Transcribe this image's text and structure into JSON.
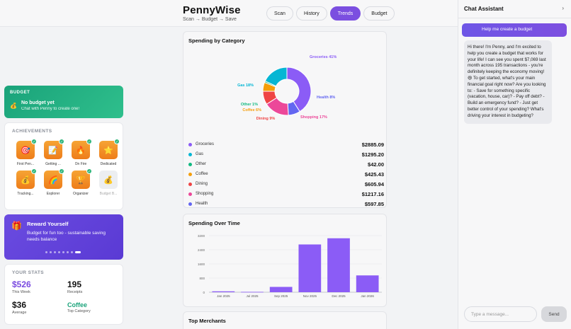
{
  "app": {
    "name": "PennyWise",
    "tagline": "Scan → Budget → Save"
  },
  "nav": {
    "tabs": [
      {
        "label": "Scan",
        "active": false
      },
      {
        "label": "History",
        "active": false
      },
      {
        "label": "Trends",
        "active": true
      },
      {
        "label": "Budget",
        "active": false
      }
    ]
  },
  "budget": {
    "label": "BUDGET",
    "title": "No budget yet",
    "subtitle": "Chat with Penny to create one!",
    "icon": "money-bag-icon"
  },
  "achievements": {
    "label": "ACHIEVEMENTS",
    "items": [
      {
        "name": "First Pen...",
        "icon": "target-icon",
        "unlocked": true
      },
      {
        "name": "Getting ...",
        "icon": "notepad-icon",
        "unlocked": true
      },
      {
        "name": "On Fire",
        "icon": "fire-icon",
        "unlocked": true
      },
      {
        "name": "Dedicated",
        "icon": "star-icon",
        "unlocked": true
      },
      {
        "name": "Tracking...",
        "icon": "money-icon",
        "unlocked": true
      },
      {
        "name": "Explorer",
        "icon": "rainbow-icon",
        "unlocked": true
      },
      {
        "name": "Organizer",
        "icon": "trophy-icon",
        "unlocked": true
      },
      {
        "name": "Budget B...",
        "icon": "moneybag-icon",
        "unlocked": false
      }
    ]
  },
  "reward": {
    "title": "Reward Yourself",
    "description": "Budget for fun too - sustainable saving needs balance",
    "dots": 8,
    "active_dot": 7
  },
  "stats": {
    "label": "YOUR STATS",
    "items": [
      {
        "value": "$526",
        "label": "This Week",
        "style": "purple"
      },
      {
        "value": "195",
        "label": "Receipts",
        "style": "plain"
      },
      {
        "value": "$36",
        "label": "Average",
        "style": "plain"
      },
      {
        "value": "Coffee",
        "label": "Top Category",
        "style": "green"
      }
    ]
  },
  "category_card": {
    "title": "Spending by Category",
    "rows": [
      {
        "name": "Groceries",
        "amount": "$2885.09",
        "color": "#8b5cf6"
      },
      {
        "name": "Gas",
        "amount": "$1295.20",
        "color": "#06b6d4"
      },
      {
        "name": "Other",
        "amount": "$42.00",
        "color": "#10b981"
      },
      {
        "name": "Coffee",
        "amount": "$425.43",
        "color": "#f59e0b"
      },
      {
        "name": "Dining",
        "amount": "$605.94",
        "color": "#ef4444"
      },
      {
        "name": "Shopping",
        "amount": "$1217.16",
        "color": "#ec4899"
      },
      {
        "name": "Health",
        "amount": "$597.85",
        "color": "#6366f1"
      }
    ],
    "labels": [
      {
        "text": "Groceries 41%"
      },
      {
        "text": "Gas 18%"
      },
      {
        "text": "Other 1%"
      },
      {
        "text": "Coffee 6%"
      },
      {
        "text": "Dining 9%"
      },
      {
        "text": "Shopping 17%"
      },
      {
        "text": "Health 8%"
      }
    ]
  },
  "time_card": {
    "title": "Spending Over Time"
  },
  "merchants_card": {
    "title": "Top Merchants"
  },
  "chat": {
    "title": "Chat Assistant",
    "user_message": "Help me create a budget",
    "bot_message": "Hi there! I'm Penny, and I'm excited to help you create a budget that works for your life! I can see you spent $7,069 last month across 195 transactions - you're definitely keeping the economy moving! 😄 To get started, what's your main financial goal right now? Are you looking to: - Save for something specific (vacation, house, car)? - Pay off debt? - Build an emergency fund? - Just get better control of your spending? What's driving your interest in budgeting?",
    "input_placeholder": "Type a message...",
    "send_label": "Send"
  },
  "chart_data": [
    {
      "type": "pie",
      "title": "Spending by Category",
      "categories": [
        "Groceries",
        "Gas",
        "Other",
        "Coffee",
        "Dining",
        "Shopping",
        "Health"
      ],
      "values": [
        41,
        18,
        1,
        6,
        9,
        17,
        8
      ],
      "amounts": [
        2885.09,
        1295.2,
        42.0,
        425.43,
        605.94,
        1217.16,
        597.85
      ],
      "colors": [
        "#8b5cf6",
        "#06b6d4",
        "#10b981",
        "#f59e0b",
        "#ef4444",
        "#ec4899",
        "#6366f1"
      ]
    },
    {
      "type": "bar",
      "title": "Spending Over Time",
      "categories": [
        "Jan 2025",
        "Jul 2025",
        "Sep 2025",
        "Nov 2025",
        "Dec 2025",
        "Jan 2026"
      ],
      "values": [
        50,
        20,
        300,
        2700,
        3050,
        950
      ],
      "yticks": [
        0,
        800,
        1600,
        2400,
        3200
      ],
      "ylim": [
        0,
        3200
      ],
      "color": "#8b5cf6",
      "grid": true
    }
  ]
}
